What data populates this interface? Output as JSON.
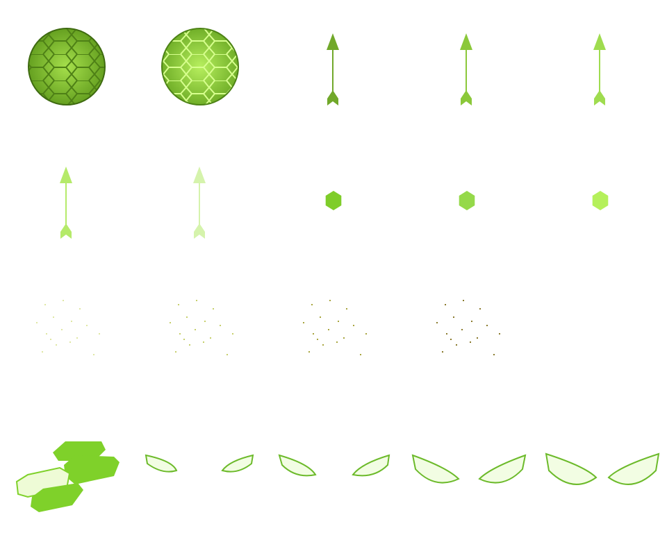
{
  "sprite_sheet": {
    "background": "#ffffff",
    "shields": [
      {
        "variant": "normal",
        "fill_dark": "#5f9a1c",
        "fill_light": "#a6e04c",
        "grid": "#4e8016",
        "outline": "#3e6a10"
      },
      {
        "variant": "glowing",
        "fill_dark": "#6aa923",
        "fill_light": "#b7ef5e",
        "grid": "#d7ff8e",
        "outline": "#4d8316"
      }
    ],
    "arrows": [
      {
        "color": "#71a82a"
      },
      {
        "color": "#8bc83a"
      },
      {
        "color": "#9fdc4f"
      },
      {
        "color": "#b5ea6a"
      },
      {
        "color": "#d5f3ac"
      }
    ],
    "hexagons": [
      {
        "color": "#7fcd2a"
      },
      {
        "color": "#95d94a"
      },
      {
        "color": "#b5f05b"
      }
    ],
    "sparkle_clouds": [
      {
        "color": "#dfe7a3"
      },
      {
        "color": "#c6cf6b"
      },
      {
        "color": "#a8a53e"
      },
      {
        "color": "#8a7a2c"
      }
    ],
    "shards": {
      "fill_dark": "#7fd12a",
      "fill_light": "#eefbd6",
      "outline": "#7fd12a"
    },
    "slashes": {
      "fill": "#f2fde3",
      "outline": "#6cba2a",
      "pairs": 4
    }
  }
}
